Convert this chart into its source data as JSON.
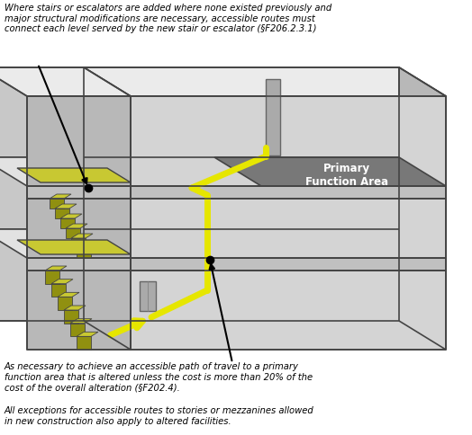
{
  "fig_width": 5.24,
  "fig_height": 4.85,
  "dpi": 100,
  "bg_color": "#ffffff",
  "note1": "Where stairs or escalators are added where none existed previously and\nmajor structural modifications are necessary, accessible routes must\nconnect each level served by the new stair or escalator (§F206.2.3.1)",
  "note2": "As necessary to achieve an accessible path of travel to a primary\nfunction area that is altered unless the cost is more than 20% of the\ncost of the overall alteration (§F202.4).",
  "note3": "All exceptions for accessible routes to stories or mezzanines allowed\nin new construction also apply to altered facilities.",
  "primary_label": "Primary\nFunction Area",
  "route_color": "#e6e600",
  "route_lw": 5.0,
  "stair_yellow": "#c8c832",
  "stair_dark": "#909010",
  "primary_area_color": "#787878",
  "outline_color": "#444444",
  "c_roof": "#ebebeb",
  "c_back_wall": "#c8c8c8",
  "c_front_wall": "#d4d4d4",
  "c_side_wall": "#b8b8b8",
  "c_floor_top": "#e2e2e2",
  "c_slab_front": "#c0c0c0",
  "c_door": "#aaaaaa"
}
